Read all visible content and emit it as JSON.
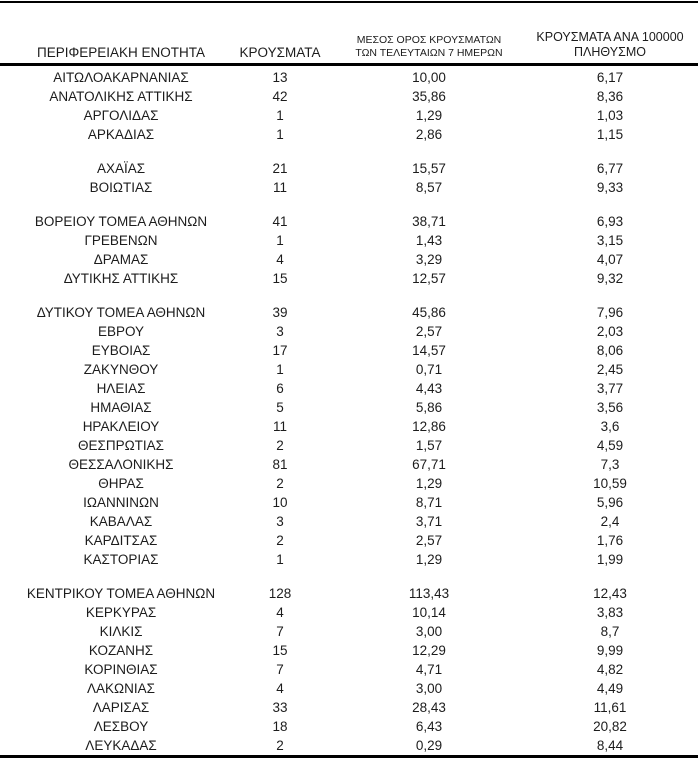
{
  "table": {
    "headers": {
      "region": "ΠΕΡΙΦΕΡΕΙΑΚΗ ΕΝΟΤΗΤΑ",
      "cases": "ΚΡΟΥΣΜΑΤΑ",
      "avg7_line1": "ΜΕΣΟΣ ΟΡΟΣ ΚΡΟΥΣΜΑΤΩΝ",
      "avg7_line2": "ΤΩΝ ΤΕΛΕΥΤΑΙΩΝ 7 ΗΜΕΡΩΝ",
      "per100k_line1": "ΚΡΟΥΣΜΑΤΑ ΑΝΑ 100000",
      "per100k_line2": "ΠΛΗΘΥΣΜΟ"
    },
    "rows": [
      {
        "name": "ΑΙΤΩΛΟΑΚΑΡΝΑΝΙΑΣ",
        "cases": "13",
        "avg7": "10,00",
        "per100k": "6,17"
      },
      {
        "name": "ΑΝΑΤΟΛΙΚΗΣ ΑΤΤΙΚΗΣ",
        "cases": "42",
        "avg7": "35,86",
        "per100k": "8,36"
      },
      {
        "name": "ΑΡΓΟΛΙΔΑΣ",
        "cases": "1",
        "avg7": "1,29",
        "per100k": "1,03"
      },
      {
        "name": "ΑΡΚΑΔΙΑΣ",
        "cases": "1",
        "avg7": "2,86",
        "per100k": "1,15"
      },
      {
        "name": "ΑΧΑΪΑΣ",
        "cases": "21",
        "avg7": "15,57",
        "per100k": "6,77",
        "group_break_before": true
      },
      {
        "name": "ΒΟΙΩΤΙΑΣ",
        "cases": "11",
        "avg7": "8,57",
        "per100k": "9,33"
      },
      {
        "name": "ΒΟΡΕΙΟΥ ΤΟΜΕΑ ΑΘΗΝΩΝ",
        "cases": "41",
        "avg7": "38,71",
        "per100k": "6,93",
        "group_break_before": true
      },
      {
        "name": "ΓΡΕΒΕΝΩΝ",
        "cases": "1",
        "avg7": "1,43",
        "per100k": "3,15"
      },
      {
        "name": "ΔΡΑΜΑΣ",
        "cases": "4",
        "avg7": "3,29",
        "per100k": "4,07"
      },
      {
        "name": "ΔΥΤΙΚΗΣ ΑΤΤΙΚΗΣ",
        "cases": "15",
        "avg7": "12,57",
        "per100k": "9,32"
      },
      {
        "name": "ΔΥΤΙΚΟΥ ΤΟΜΕΑ ΑΘΗΝΩΝ",
        "cases": "39",
        "avg7": "45,86",
        "per100k": "7,96",
        "group_break_before": true
      },
      {
        "name": "ΕΒΡΟΥ",
        "cases": "3",
        "avg7": "2,57",
        "per100k": "2,03"
      },
      {
        "name": "ΕΥΒΟΙΑΣ",
        "cases": "17",
        "avg7": "14,57",
        "per100k": "8,06"
      },
      {
        "name": "ΖΑΚΥΝΘΟΥ",
        "cases": "1",
        "avg7": "0,71",
        "per100k": "2,45"
      },
      {
        "name": "ΗΛΕΙΑΣ",
        "cases": "6",
        "avg7": "4,43",
        "per100k": "3,77"
      },
      {
        "name": "ΗΜΑΘΙΑΣ",
        "cases": "5",
        "avg7": "5,86",
        "per100k": "3,56"
      },
      {
        "name": "ΗΡΑΚΛΕΙΟΥ",
        "cases": "11",
        "avg7": "12,86",
        "per100k": "3,6"
      },
      {
        "name": "ΘΕΣΠΡΩΤΙΑΣ",
        "cases": "2",
        "avg7": "1,57",
        "per100k": "4,59"
      },
      {
        "name": "ΘΕΣΣΑΛΟΝΙΚΗΣ",
        "cases": "81",
        "avg7": "67,71",
        "per100k": "7,3"
      },
      {
        "name": "ΘΗΡΑΣ",
        "cases": "2",
        "avg7": "1,29",
        "per100k": "10,59"
      },
      {
        "name": "ΙΩΑΝΝΙΝΩΝ",
        "cases": "10",
        "avg7": "8,71",
        "per100k": "5,96"
      },
      {
        "name": "ΚΑΒΑΛΑΣ",
        "cases": "3",
        "avg7": "3,71",
        "per100k": "2,4"
      },
      {
        "name": "ΚΑΡΔΙΤΣΑΣ",
        "cases": "2",
        "avg7": "2,57",
        "per100k": "1,76"
      },
      {
        "name": "ΚΑΣΤΟΡΙΑΣ",
        "cases": "1",
        "avg7": "1,29",
        "per100k": "1,99"
      },
      {
        "name": "ΚΕΝΤΡΙΚΟΥ ΤΟΜΕΑ ΑΘΗΝΩΝ",
        "cases": "128",
        "avg7": "113,43",
        "per100k": "12,43",
        "group_break_before": true
      },
      {
        "name": "ΚΕΡΚΥΡΑΣ",
        "cases": "4",
        "avg7": "10,14",
        "per100k": "3,83"
      },
      {
        "name": "ΚΙΛΚΙΣ",
        "cases": "7",
        "avg7": "3,00",
        "per100k": "8,7"
      },
      {
        "name": "ΚΟΖΑΝΗΣ",
        "cases": "15",
        "avg7": "12,29",
        "per100k": "9,99"
      },
      {
        "name": "ΚΟΡΙΝΘΙΑΣ",
        "cases": "7",
        "avg7": "4,71",
        "per100k": "4,82"
      },
      {
        "name": "ΛΑΚΩΝΙΑΣ",
        "cases": "4",
        "avg7": "3,00",
        "per100k": "4,49"
      },
      {
        "name": "ΛΑΡΙΣΑΣ",
        "cases": "33",
        "avg7": "28,43",
        "per100k": "11,61"
      },
      {
        "name": "ΛΕΣΒΟΥ",
        "cases": "18",
        "avg7": "6,43",
        "per100k": "20,82"
      },
      {
        "name": "ΛΕΥΚΑΔΑΣ",
        "cases": "2",
        "avg7": "0,29",
        "per100k": "8,44"
      }
    ]
  }
}
